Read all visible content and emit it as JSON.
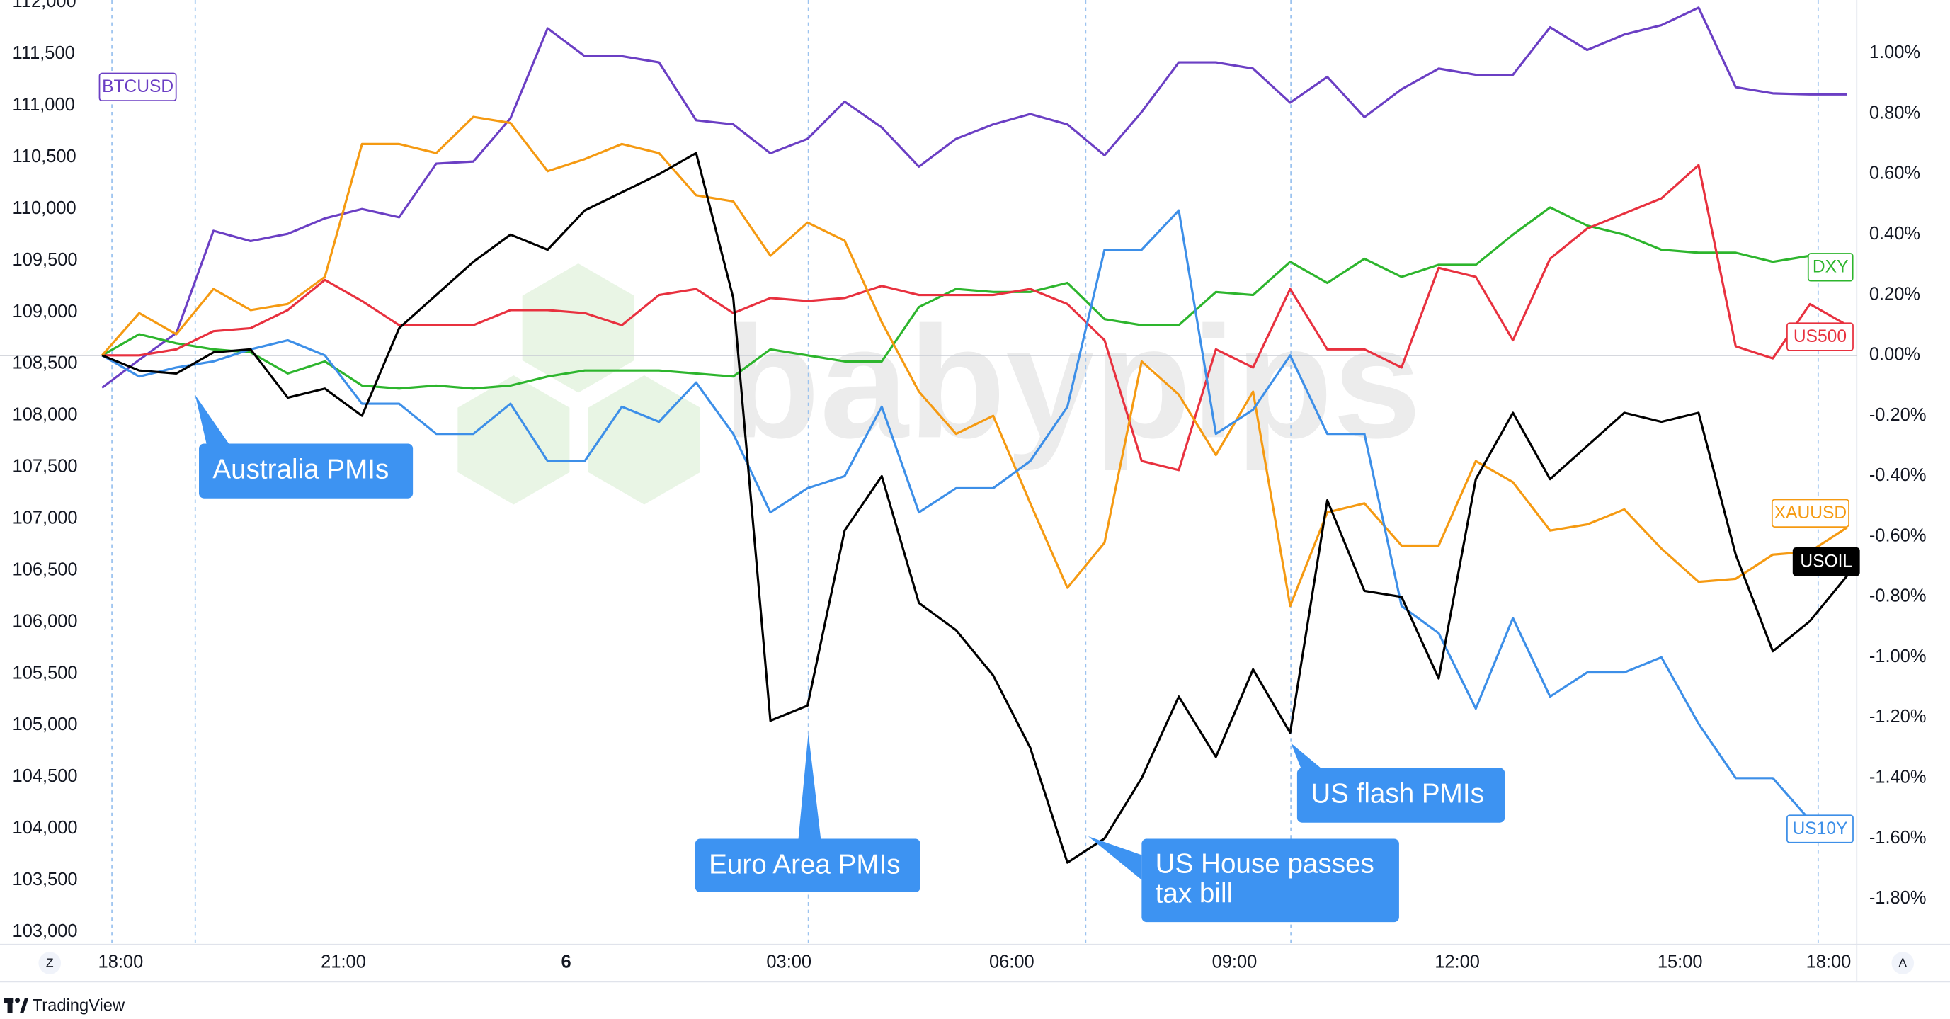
{
  "chart_data": {
    "type": "line",
    "watermark": "babypips",
    "footer": "TradingView",
    "axis_buttons": [
      "Z",
      "A"
    ],
    "x": [
      -0.25,
      0.25,
      0.75,
      1.25,
      1.75,
      2.25,
      2.75,
      3.25,
      3.75,
      4.25,
      4.75,
      5.25,
      5.75,
      6.25,
      6.75,
      7.25,
      7.75,
      8.25,
      8.75,
      9.25,
      9.75,
      10.25,
      10.75,
      11.25,
      11.75,
      12.25,
      12.75,
      13.25,
      13.75,
      14.25,
      14.75,
      15.25,
      15.75,
      16.25,
      16.75,
      17.25,
      17.75,
      18.25,
      18.75,
      19.25,
      19.75,
      20.25,
      20.75,
      21.25,
      21.75,
      22.25,
      22.75,
      23.25
    ],
    "xlim": [
      -1.625,
      23.38
    ],
    "xticks": [
      {
        "value": 0,
        "label": "18:00"
      },
      {
        "value": 3,
        "label": "21:00"
      },
      6,
      {
        "value": 9,
        "label": "03:00"
      },
      {
        "value": 12,
        "label": "06:00"
      },
      {
        "value": 15,
        "label": "09:00"
      },
      {
        "value": 18,
        "label": "12:00"
      },
      {
        "value": 21,
        "label": "15:00"
      },
      {
        "value": 23,
        "label": "18:00"
      }
    ],
    "ylim": [
      102880,
      112024
    ],
    "yticks": [
      {
        "value": 103000,
        "label": "103,000"
      },
      {
        "value": 103500,
        "label": "103,500"
      },
      {
        "value": 104000,
        "label": "104,000"
      },
      {
        "value": 104500,
        "label": "104,500"
      },
      {
        "value": 105000,
        "label": "105,000"
      },
      {
        "value": 105500,
        "label": "105,500"
      },
      {
        "value": 106000,
        "label": "106,000"
      },
      {
        "value": 106500,
        "label": "106,500"
      },
      {
        "value": 107000,
        "label": "107,000"
      },
      {
        "value": 107500,
        "label": "107,500"
      },
      {
        "value": 108000,
        "label": "108,000"
      },
      {
        "value": 108500,
        "label": "108,500"
      },
      {
        "value": 109000,
        "label": "109,000"
      },
      {
        "value": 109500,
        "label": "109,500"
      },
      {
        "value": 110000,
        "label": "110,000"
      },
      {
        "value": 110500,
        "label": "110,500"
      },
      {
        "value": 111000,
        "label": "111,000"
      },
      {
        "value": 111500,
        "label": "111,500"
      },
      {
        "value": 112000,
        "label": "112,000"
      }
    ],
    "y2lim": [
      -1.951,
      1.177
    ],
    "y2ticks": [
      {
        "value": -1.8,
        "label": "-1.80%"
      },
      {
        "value": -1.6,
        "label": "-1.60%"
      },
      {
        "value": -1.4,
        "label": "-1.40%"
      },
      {
        "value": -1.2,
        "label": "-1.20%"
      },
      {
        "value": -1.0,
        "label": "-1.00%"
      },
      {
        "value": -0.8,
        "label": "-0.80%"
      },
      {
        "value": -0.6,
        "label": "-0.60%"
      },
      {
        "value": -0.4,
        "label": "-0.40%"
      },
      {
        "value": -0.2,
        "label": "-0.20%"
      },
      {
        "value": 0,
        "label": "0.00%"
      },
      {
        "value": 0.2,
        "label": "0.20%"
      },
      {
        "value": 0.4,
        "label": "0.40%"
      },
      {
        "value": 0.6,
        "label": "0.60%"
      },
      {
        "value": 0.8,
        "label": "0.80%"
      },
      {
        "value": 1.0,
        "label": "1.00%"
      }
    ],
    "series": [
      {
        "name": "BTCUSD",
        "color": "#6b3fc4",
        "values": [
          108270,
          108540,
          108800,
          109790,
          109690,
          109760,
          109910,
          110000,
          109920,
          110440,
          110460,
          110880,
          111750,
          111480,
          111480,
          111420,
          110860,
          110820,
          110540,
          110680,
          111040,
          110790,
          110410,
          110680,
          110820,
          110920,
          110820,
          110520,
          110940,
          111420,
          111420,
          111360,
          111030,
          111280,
          110890,
          111160,
          111360,
          111300,
          111300,
          111760,
          111540,
          111690,
          111780,
          111950,
          111180,
          111120,
          111110,
          111110
        ]
      },
      {
        "name": "DXY",
        "color": "#2db52d",
        "axis": "y2",
        "values": [
          0.0,
          0.07,
          0.04,
          0.02,
          0.01,
          -0.06,
          -0.02,
          -0.1,
          -0.11,
          -0.1,
          -0.11,
          -0.1,
          -0.07,
          -0.05,
          -0.05,
          -0.05,
          -0.06,
          -0.07,
          0.02,
          0.0,
          -0.02,
          -0.02,
          0.16,
          0.22,
          0.21,
          0.21,
          0.24,
          0.12,
          0.1,
          0.1,
          0.21,
          0.2,
          0.31,
          0.24,
          0.32,
          0.26,
          0.3,
          0.3,
          0.4,
          0.49,
          0.43,
          0.4,
          0.35,
          0.34,
          0.34,
          0.31,
          0.33,
          0.33
        ]
      },
      {
        "name": "US500",
        "color": "#e8313f",
        "axis": "y2",
        "values": [
          0.0,
          0.0,
          0.02,
          0.08,
          0.09,
          0.15,
          0.25,
          0.18,
          0.1,
          0.1,
          0.1,
          0.15,
          0.15,
          0.14,
          0.1,
          0.2,
          0.22,
          0.14,
          0.19,
          0.18,
          0.19,
          0.23,
          0.2,
          0.2,
          0.2,
          0.22,
          0.17,
          0.05,
          -0.35,
          -0.38,
          0.02,
          -0.04,
          0.22,
          0.02,
          0.02,
          -0.04,
          0.29,
          0.26,
          0.05,
          0.32,
          0.42,
          0.47,
          0.52,
          0.63,
          0.03,
          -0.01,
          0.17,
          0.1
        ]
      },
      {
        "name": "XAUUSD",
        "color": "#f59a12",
        "axis": "y2",
        "values": [
          0.0,
          0.14,
          0.07,
          0.22,
          0.15,
          0.17,
          0.26,
          0.7,
          0.7,
          0.67,
          0.79,
          0.77,
          0.61,
          0.65,
          0.7,
          0.67,
          0.53,
          0.51,
          0.33,
          0.44,
          0.38,
          0.11,
          -0.12,
          -0.26,
          -0.2,
          -0.49,
          -0.77,
          -0.62,
          -0.02,
          -0.13,
          -0.33,
          -0.12,
          -0.83,
          -0.52,
          -0.49,
          -0.63,
          -0.63,
          -0.35,
          -0.42,
          -0.58,
          -0.56,
          -0.51,
          -0.64,
          -0.75,
          -0.74,
          -0.66,
          -0.65,
          -0.57
        ]
      },
      {
        "name": "USOIL",
        "color": "#000000",
        "axis": "y2",
        "values": [
          0.0,
          -0.05,
          -0.06,
          0.01,
          0.02,
          -0.14,
          -0.11,
          -0.2,
          0.09,
          0.2,
          0.31,
          0.4,
          0.35,
          0.48,
          0.54,
          0.6,
          0.67,
          0.19,
          -1.21,
          -1.16,
          -0.58,
          -0.4,
          -0.82,
          -0.91,
          -1.06,
          -1.3,
          -1.68,
          -1.6,
          -1.4,
          -1.13,
          -1.33,
          -1.04,
          -1.25,
          -0.48,
          -0.78,
          -0.8,
          -1.07,
          -0.41,
          -0.19,
          -0.41,
          -0.3,
          -0.19,
          -0.22,
          -0.19,
          -0.66,
          -0.98,
          -0.88,
          -0.73
        ]
      },
      {
        "name": "US10Y",
        "color": "#3d8fe8",
        "axis": "y2",
        "values": [
          0.0,
          -0.07,
          -0.04,
          -0.02,
          0.02,
          0.05,
          0.0,
          -0.16,
          -0.16,
          -0.26,
          -0.26,
          -0.16,
          -0.35,
          -0.35,
          -0.17,
          -0.22,
          -0.09,
          -0.26,
          -0.52,
          -0.44,
          -0.4,
          -0.17,
          -0.52,
          -0.44,
          -0.44,
          -0.35,
          -0.17,
          0.35,
          0.35,
          0.48,
          -0.26,
          -0.18,
          0.0,
          -0.26,
          -0.26,
          -0.83,
          -0.92,
          -1.17,
          -0.87,
          -1.13,
          -1.05,
          -1.05,
          -1.0,
          -1.22,
          -1.4,
          -1.4,
          -1.54,
          null
        ]
      }
    ],
    "annotations": [
      {
        "lines": [
          "Australia PMIs"
        ]
      },
      {
        "lines": [
          "Euro Area PMIs"
        ]
      },
      {
        "lines": [
          "US House passes",
          "tax bill"
        ]
      },
      {
        "lines": [
          "US flash PMIs"
        ]
      }
    ]
  }
}
